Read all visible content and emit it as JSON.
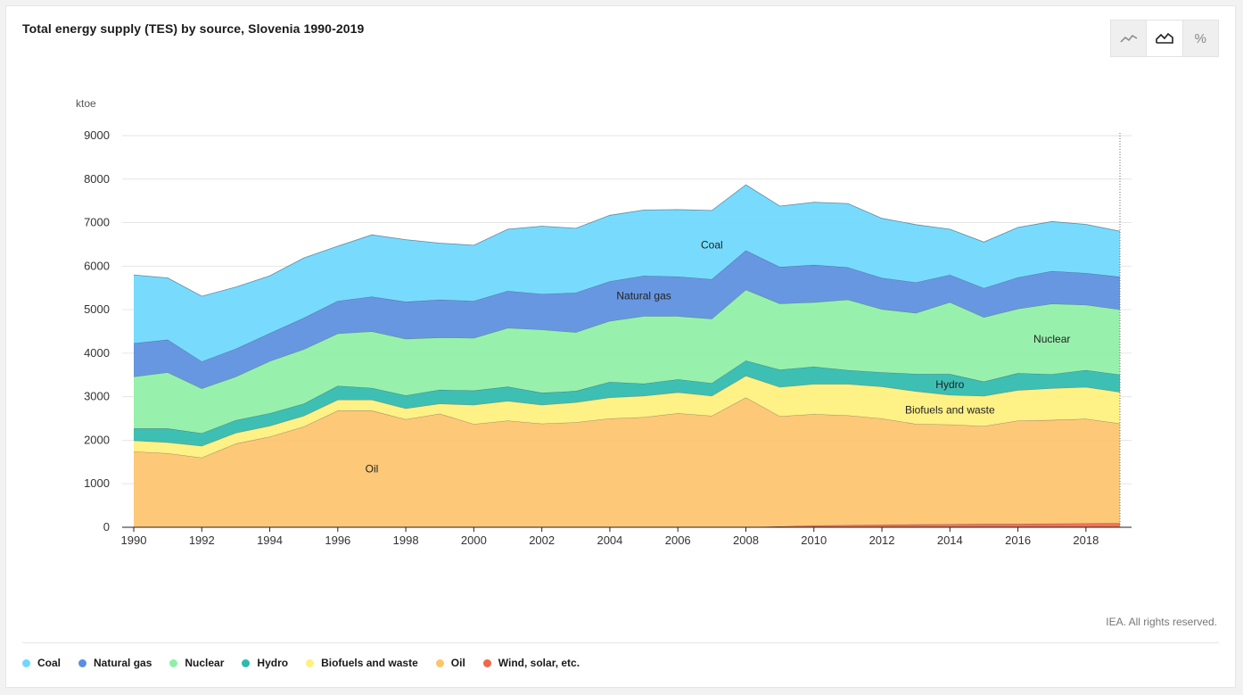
{
  "title": "Total energy supply (TES) by source, Slovenia 1990-2019",
  "toggle": {
    "buttons": [
      {
        "icon": "line-chart-icon"
      },
      {
        "icon": "area-chart-icon",
        "active": true
      },
      {
        "icon": "percent-icon",
        "label": "%"
      }
    ]
  },
  "credit": "IEA. All rights reserved.",
  "chart_data": {
    "type": "area",
    "stacked": true,
    "ylabel": "ktoe",
    "ylim": [
      0,
      9000
    ],
    "yticks": [
      0,
      1000,
      2000,
      3000,
      4000,
      5000,
      6000,
      7000,
      8000,
      9000
    ],
    "xlim": [
      1990,
      2019
    ],
    "xticks": [
      1990,
      1992,
      1994,
      1996,
      1998,
      2000,
      2002,
      2004,
      2006,
      2008,
      2010,
      2012,
      2014,
      2016,
      2018
    ],
    "grid": true,
    "legend_position": "bottom",
    "x": [
      1990,
      1991,
      1992,
      1993,
      1994,
      1995,
      1996,
      1997,
      1998,
      1999,
      2000,
      2001,
      2002,
      2003,
      2004,
      2005,
      2006,
      2007,
      2008,
      2009,
      2010,
      2011,
      2012,
      2013,
      2014,
      2015,
      2016,
      2017,
      2018,
      2019
    ],
    "series": [
      {
        "name": "Wind, solar, etc.",
        "color": "#f0664a",
        "values": [
          0,
          0,
          0,
          0,
          0,
          0,
          0,
          0,
          0,
          0,
          0,
          0,
          0,
          0,
          0,
          0,
          0,
          0,
          0,
          20,
          40,
          50,
          60,
          65,
          70,
          75,
          80,
          85,
          90,
          95
        ]
      },
      {
        "name": "Oil",
        "color": "#fdc46c",
        "values": [
          1740,
          1700,
          1600,
          1920,
          2080,
          2310,
          2680,
          2680,
          2480,
          2610,
          2370,
          2450,
          2380,
          2410,
          2500,
          2530,
          2620,
          2560,
          2980,
          2530,
          2560,
          2520,
          2440,
          2310,
          2290,
          2250,
          2370,
          2380,
          2400,
          2290
        ]
      },
      {
        "name": "Biofuels and waste",
        "color": "#fef07b",
        "values": [
          250,
          250,
          270,
          250,
          250,
          250,
          250,
          250,
          250,
          230,
          440,
          450,
          430,
          460,
          480,
          490,
          480,
          460,
          500,
          670,
          690,
          720,
          730,
          750,
          680,
          690,
          700,
          730,
          730,
          720
        ]
      },
      {
        "name": "Hydro",
        "color": "#2ebaad",
        "values": [
          280,
          320,
          290,
          290,
          290,
          280,
          320,
          270,
          300,
          320,
          330,
          330,
          280,
          260,
          360,
          280,
          300,
          290,
          350,
          400,
          400,
          320,
          330,
          400,
          480,
          330,
          390,
          320,
          390,
          400
        ]
      },
      {
        "name": "Nuclear",
        "color": "#8ef0a6",
        "values": [
          1190,
          1290,
          1030,
          1000,
          1200,
          1250,
          1200,
          1300,
          1300,
          1200,
          1210,
          1350,
          1450,
          1350,
          1400,
          1550,
          1450,
          1480,
          1630,
          1520,
          1480,
          1620,
          1450,
          1400,
          1650,
          1480,
          1480,
          1620,
          1500,
          1500
        ]
      },
      {
        "name": "Natural gas",
        "color": "#5b8ee0",
        "values": [
          770,
          750,
          620,
          640,
          640,
          720,
          750,
          800,
          850,
          870,
          850,
          850,
          820,
          910,
          910,
          930,
          910,
          910,
          900,
          840,
          860,
          740,
          720,
          700,
          630,
          670,
          720,
          750,
          730,
          750
        ]
      },
      {
        "name": "Coal",
        "color": "#6dd8fe",
        "values": [
          1570,
          1420,
          1500,
          1420,
          1320,
          1380,
          1260,
          1420,
          1430,
          1300,
          1280,
          1420,
          1560,
          1480,
          1520,
          1510,
          1540,
          1580,
          1510,
          1400,
          1440,
          1470,
          1370,
          1330,
          1050,
          1060,
          1150,
          1140,
          1120,
          1050
        ]
      }
    ],
    "series_labels": [
      {
        "series": "Coal",
        "text": "Coal"
      },
      {
        "series": "Natural gas",
        "text": "Natural gas"
      },
      {
        "series": "Nuclear",
        "text": "Nuclear"
      },
      {
        "series": "Hydro",
        "text": "Hydro"
      },
      {
        "series": "Biofuels and waste",
        "text": "Biofuels and waste"
      },
      {
        "series": "Oil",
        "text": "Oil"
      }
    ]
  },
  "legend": [
    {
      "label": "Coal",
      "color": "#6dd8fe"
    },
    {
      "label": "Natural gas",
      "color": "#5b8ee0"
    },
    {
      "label": "Nuclear",
      "color": "#8ef0a6"
    },
    {
      "label": "Hydro",
      "color": "#2ebaad"
    },
    {
      "label": "Biofuels and waste",
      "color": "#fef07b"
    },
    {
      "label": "Oil",
      "color": "#fdc46c"
    },
    {
      "label": "Wind, solar, etc.",
      "color": "#f0664a"
    }
  ]
}
